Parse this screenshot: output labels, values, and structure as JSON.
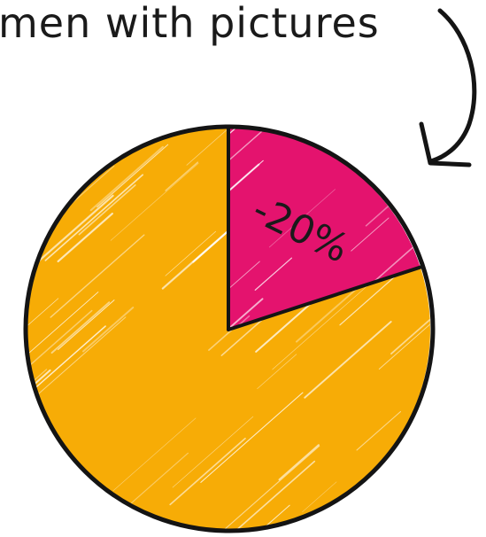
{
  "chart_data": {
    "type": "pie",
    "title": "men with pictures",
    "slices": [
      {
        "label": "-20%",
        "value": 20,
        "color": "#e4136e"
      },
      {
        "label": "",
        "value": 80,
        "color": "#f7ac06"
      }
    ],
    "start_angle_deg": 0,
    "direction": "clockwise"
  },
  "colors": {
    "outline": "#141414",
    "background": "#ffffff",
    "hatch": "#ffffff"
  }
}
